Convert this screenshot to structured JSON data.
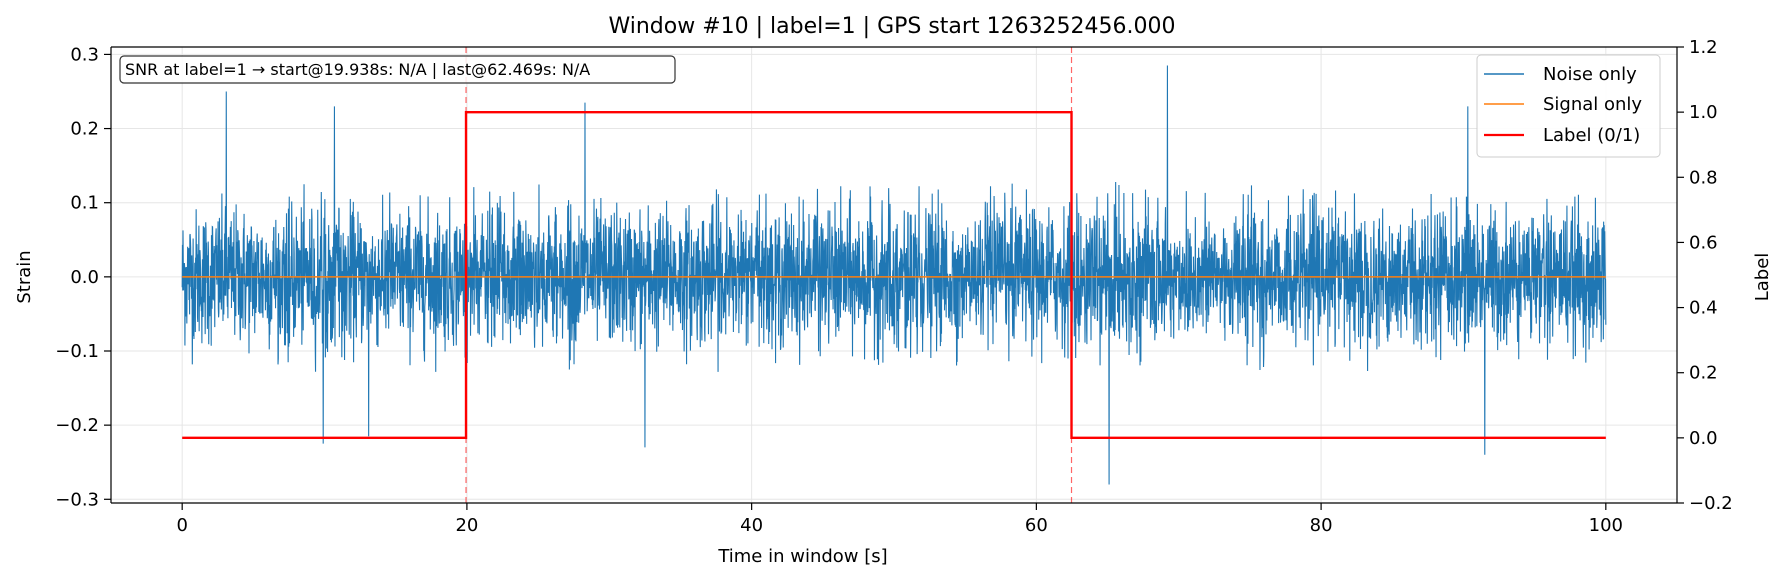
{
  "chart_data": {
    "type": "line",
    "title": "Window #10  |  label=1  |  GPS start 1263252456.000",
    "xlabel": "Time in window [s]",
    "ylabel": "Strain",
    "y2label": "Label",
    "xlim": [
      -5,
      105
    ],
    "ylim": [
      -0.305,
      0.31
    ],
    "y2lim": [
      -0.2,
      1.2
    ],
    "xticks": [
      0,
      20,
      40,
      60,
      80,
      100
    ],
    "yticks": [
      -0.3,
      -0.2,
      -0.1,
      0.0,
      0.1,
      0.2,
      0.3
    ],
    "y2ticks": [
      -0.2,
      0.0,
      0.2,
      0.4,
      0.6,
      0.8,
      1.0,
      1.2
    ],
    "xtick_labels": [
      "0",
      "20",
      "40",
      "60",
      "80",
      "100"
    ],
    "ytick_labels": [
      "−0.3",
      "−0.2",
      "−0.1",
      "0.0",
      "0.1",
      "0.2",
      "0.3"
    ],
    "y2tick_labels": [
      "−0.2",
      "0.0",
      "0.2",
      "0.4",
      "0.6",
      "0.8",
      "1.0",
      "1.2"
    ],
    "grid": true,
    "legend_position": "top-right",
    "annotation": "SNR at label=1 → start@19.938s: N/A | last@62.469s: N/A",
    "series": [
      {
        "name": "Noise only",
        "color": "#1f77b4",
        "x_range": [
          0,
          100
        ],
        "typical_amplitude": 0.045,
        "envelope_max": 0.13,
        "envelope_min": -0.13,
        "peaks": [
          {
            "x": 3.1,
            "y": 0.25
          },
          {
            "x": 10.7,
            "y": 0.23
          },
          {
            "x": 28.3,
            "y": 0.235
          },
          {
            "x": 69.2,
            "y": 0.285
          },
          {
            "x": 90.3,
            "y": 0.23
          },
          {
            "x": 9.9,
            "y": -0.225
          },
          {
            "x": 13.1,
            "y": -0.215
          },
          {
            "x": 32.5,
            "y": -0.23
          },
          {
            "x": 65.1,
            "y": -0.28
          },
          {
            "x": 91.5,
            "y": -0.24
          }
        ]
      },
      {
        "name": "Signal only",
        "color": "#ff7f0e",
        "x": [
          0,
          100
        ],
        "y": [
          0.0,
          0.0
        ]
      },
      {
        "name": "Label (0/1)",
        "color": "#ff0000",
        "axis": "right",
        "x": [
          0,
          19.938,
          19.938,
          62.469,
          62.469,
          100
        ],
        "y": [
          0,
          0,
          1,
          1,
          0,
          0
        ]
      }
    ],
    "vlines": [
      19.938,
      62.469
    ]
  }
}
